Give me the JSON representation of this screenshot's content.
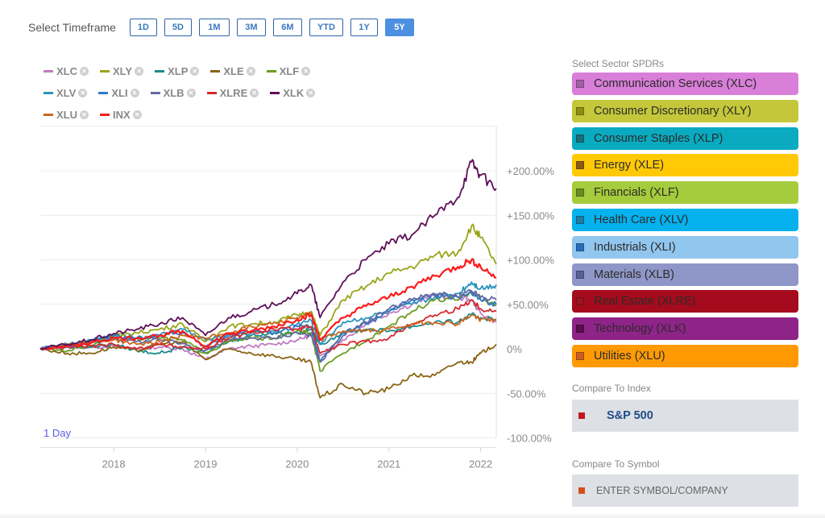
{
  "timeframe": {
    "label": "Select Timeframe",
    "options": [
      "1D",
      "5D",
      "1M",
      "3M",
      "6M",
      "YTD",
      "1Y",
      "5Y"
    ],
    "selected": "5Y"
  },
  "legend": {
    "remove_icon": "close-circle-icon",
    "rows": [
      [
        {
          "label": "XLC",
          "color": "#c17ac3"
        },
        {
          "label": "XLY",
          "color": "#9aa51a"
        },
        {
          "label": "XLP",
          "color": "#1b8a8c"
        },
        {
          "label": "XLE",
          "color": "#8a6514"
        },
        {
          "label": "XLF",
          "color": "#6e9b22"
        }
      ],
      [
        {
          "label": "XLV",
          "color": "#2b93bf"
        },
        {
          "label": "XLI",
          "color": "#2f78c8"
        },
        {
          "label": "XLB",
          "color": "#626aa0"
        },
        {
          "label": "XLRE",
          "color": "#d42a2e"
        },
        {
          "label": "XLK",
          "color": "#5f0f5a"
        }
      ],
      [
        {
          "label": "XLU",
          "color": "#c9661f"
        },
        {
          "label": "INX",
          "color": "#ff1a1a"
        }
      ]
    ]
  },
  "chart_label": "1 Day",
  "chart_data": {
    "type": "line",
    "title": "",
    "xlabel": "",
    "ylabel": "",
    "x": [
      2017.2,
      2017.5,
      2017.75,
      2018.0,
      2018.25,
      2018.5,
      2018.75,
      2019.0,
      2019.25,
      2019.5,
      2019.75,
      2020.0,
      2020.15,
      2020.25,
      2020.5,
      2020.75,
      2021.0,
      2021.25,
      2021.5,
      2021.75,
      2021.9,
      2022.0,
      2022.17
    ],
    "xlim": [
      2017.2,
      2022.17
    ],
    "ylim": [
      -100,
      250
    ],
    "x_ticks": [
      "2018",
      "2019",
      "2020",
      "2021",
      "2022"
    ],
    "x_tick_values": [
      2018,
      2019,
      2020,
      2021,
      2022
    ],
    "y_ticks": [
      "+200.00%",
      "+150.00%",
      "+100.00%",
      "+50.00%",
      "0%",
      "-50.00%",
      "-100.00%"
    ],
    "y_tick_values": [
      200,
      150,
      100,
      50,
      0,
      -50,
      -100
    ],
    "grid": true,
    "legend_position": "top-left",
    "series": [
      {
        "name": "XLC",
        "color": "#c17ac3",
        "values": [
          0,
          2,
          2,
          3,
          0,
          2,
          0,
          -12,
          0,
          3,
          5,
          10,
          15,
          -8,
          10,
          28,
          40,
          50,
          60,
          58,
          55,
          40,
          30
        ]
      },
      {
        "name": "XLY",
        "color": "#9aa51a",
        "values": [
          0,
          4,
          8,
          15,
          18,
          22,
          28,
          8,
          25,
          28,
          30,
          38,
          42,
          15,
          55,
          70,
          85,
          92,
          105,
          108,
          138,
          125,
          95
        ]
      },
      {
        "name": "XLP",
        "color": "#1b8a8c",
        "values": [
          0,
          3,
          2,
          5,
          -2,
          -5,
          2,
          -5,
          8,
          15,
          18,
          18,
          22,
          5,
          18,
          22,
          20,
          25,
          30,
          30,
          38,
          35,
          33
        ]
      },
      {
        "name": "XLE",
        "color": "#8a6514",
        "values": [
          0,
          -5,
          -5,
          2,
          -2,
          5,
          8,
          -12,
          0,
          -5,
          -8,
          -12,
          -15,
          -55,
          -40,
          -50,
          -45,
          -30,
          -30,
          -15,
          -15,
          -5,
          5
        ]
      },
      {
        "name": "XLF",
        "color": "#6e9b22",
        "values": [
          0,
          -2,
          4,
          15,
          12,
          12,
          10,
          -5,
          8,
          12,
          12,
          20,
          18,
          -25,
          -5,
          10,
          25,
          42,
          55,
          55,
          65,
          55,
          50
        ]
      },
      {
        "name": "XLV",
        "color": "#2b93bf",
        "values": [
          0,
          5,
          10,
          14,
          12,
          15,
          22,
          10,
          14,
          18,
          20,
          28,
          32,
          5,
          30,
          35,
          42,
          50,
          58,
          62,
          75,
          68,
          72
        ]
      },
      {
        "name": "XLI",
        "color": "#2f78c8",
        "values": [
          0,
          3,
          8,
          15,
          12,
          15,
          18,
          2,
          16,
          20,
          18,
          25,
          25,
          -15,
          18,
          28,
          42,
          55,
          60,
          58,
          62,
          55,
          50
        ]
      },
      {
        "name": "XLB",
        "color": "#626aa0",
        "values": [
          0,
          2,
          6,
          12,
          8,
          10,
          6,
          -2,
          10,
          12,
          12,
          18,
          15,
          -15,
          15,
          30,
          45,
          55,
          62,
          58,
          65,
          58,
          55
        ]
      },
      {
        "name": "XLRE",
        "color": "#d42a2e",
        "values": [
          0,
          2,
          3,
          5,
          0,
          5,
          2,
          0,
          12,
          18,
          22,
          22,
          25,
          -5,
          5,
          8,
          12,
          28,
          38,
          45,
          55,
          45,
          42
        ]
      },
      {
        "name": "XLU",
        "color": "#c9661f",
        "values": [
          0,
          5,
          8,
          10,
          5,
          8,
          15,
          12,
          18,
          25,
          30,
          35,
          40,
          10,
          20,
          20,
          22,
          28,
          30,
          28,
          38,
          33,
          33
        ]
      },
      {
        "name": "INX",
        "color": "#ff1a1a",
        "values": [
          0,
          3,
          7,
          12,
          12,
          15,
          20,
          3,
          17,
          20,
          25,
          33,
          38,
          10,
          35,
          48,
          58,
          70,
          82,
          92,
          100,
          92,
          80
        ]
      },
      {
        "name": "XLK",
        "color": "#5f0f5a",
        "values": [
          0,
          5,
          10,
          17,
          22,
          28,
          35,
          15,
          35,
          42,
          50,
          62,
          72,
          35,
          75,
          100,
          118,
          128,
          150,
          170,
          210,
          195,
          180
        ]
      }
    ]
  },
  "sidebar": {
    "sectors_label": "Select Sector SPDRs",
    "sectors": [
      {
        "label": "Communication Services (XLC)",
        "bg": "#d97ed9",
        "sq": "#a15fa6"
      },
      {
        "label": "Consumer Discretionary (XLY)",
        "bg": "#c4c73a",
        "sq": "#8a8f12"
      },
      {
        "label": "Consumer Staples (XLP)",
        "bg": "#0aaac0",
        "sq": "#1a6e7a"
      },
      {
        "label": "Energy (XLE)",
        "bg": "#ffc905",
        "sq": "#8a5a12"
      },
      {
        "label": "Financials (XLF)",
        "bg": "#a4cc3c",
        "sq": "#6a8a22"
      },
      {
        "label": "Health Care (XLV)",
        "bg": "#05b2ee",
        "sq": "#1f7ca6"
      },
      {
        "label": "Industrials (XLI)",
        "bg": "#91c6ee",
        "sq": "#2a6cb8"
      },
      {
        "label": "Materials (XLB)",
        "bg": "#8f97c8",
        "sq": "#5a5f96"
      },
      {
        "label": "Real Estate (XLRE)",
        "bg": "#a50b1c",
        "sq": "#9a1520"
      },
      {
        "label": "Technology (XLK)",
        "bg": "#8e2487",
        "sq": "#5a0d4e"
      },
      {
        "label": "Utilities (XLU)",
        "bg": "#ff9a05",
        "sq": "#c95f1f"
      }
    ],
    "index_label": "Compare To Index",
    "index_value": "S&P 500",
    "index_color": "#c4161c",
    "symbol_label": "Compare To Symbol",
    "symbol_placeholder": "ENTER SYMBOL/COMPANY",
    "symbol_color": "#d4501a"
  }
}
